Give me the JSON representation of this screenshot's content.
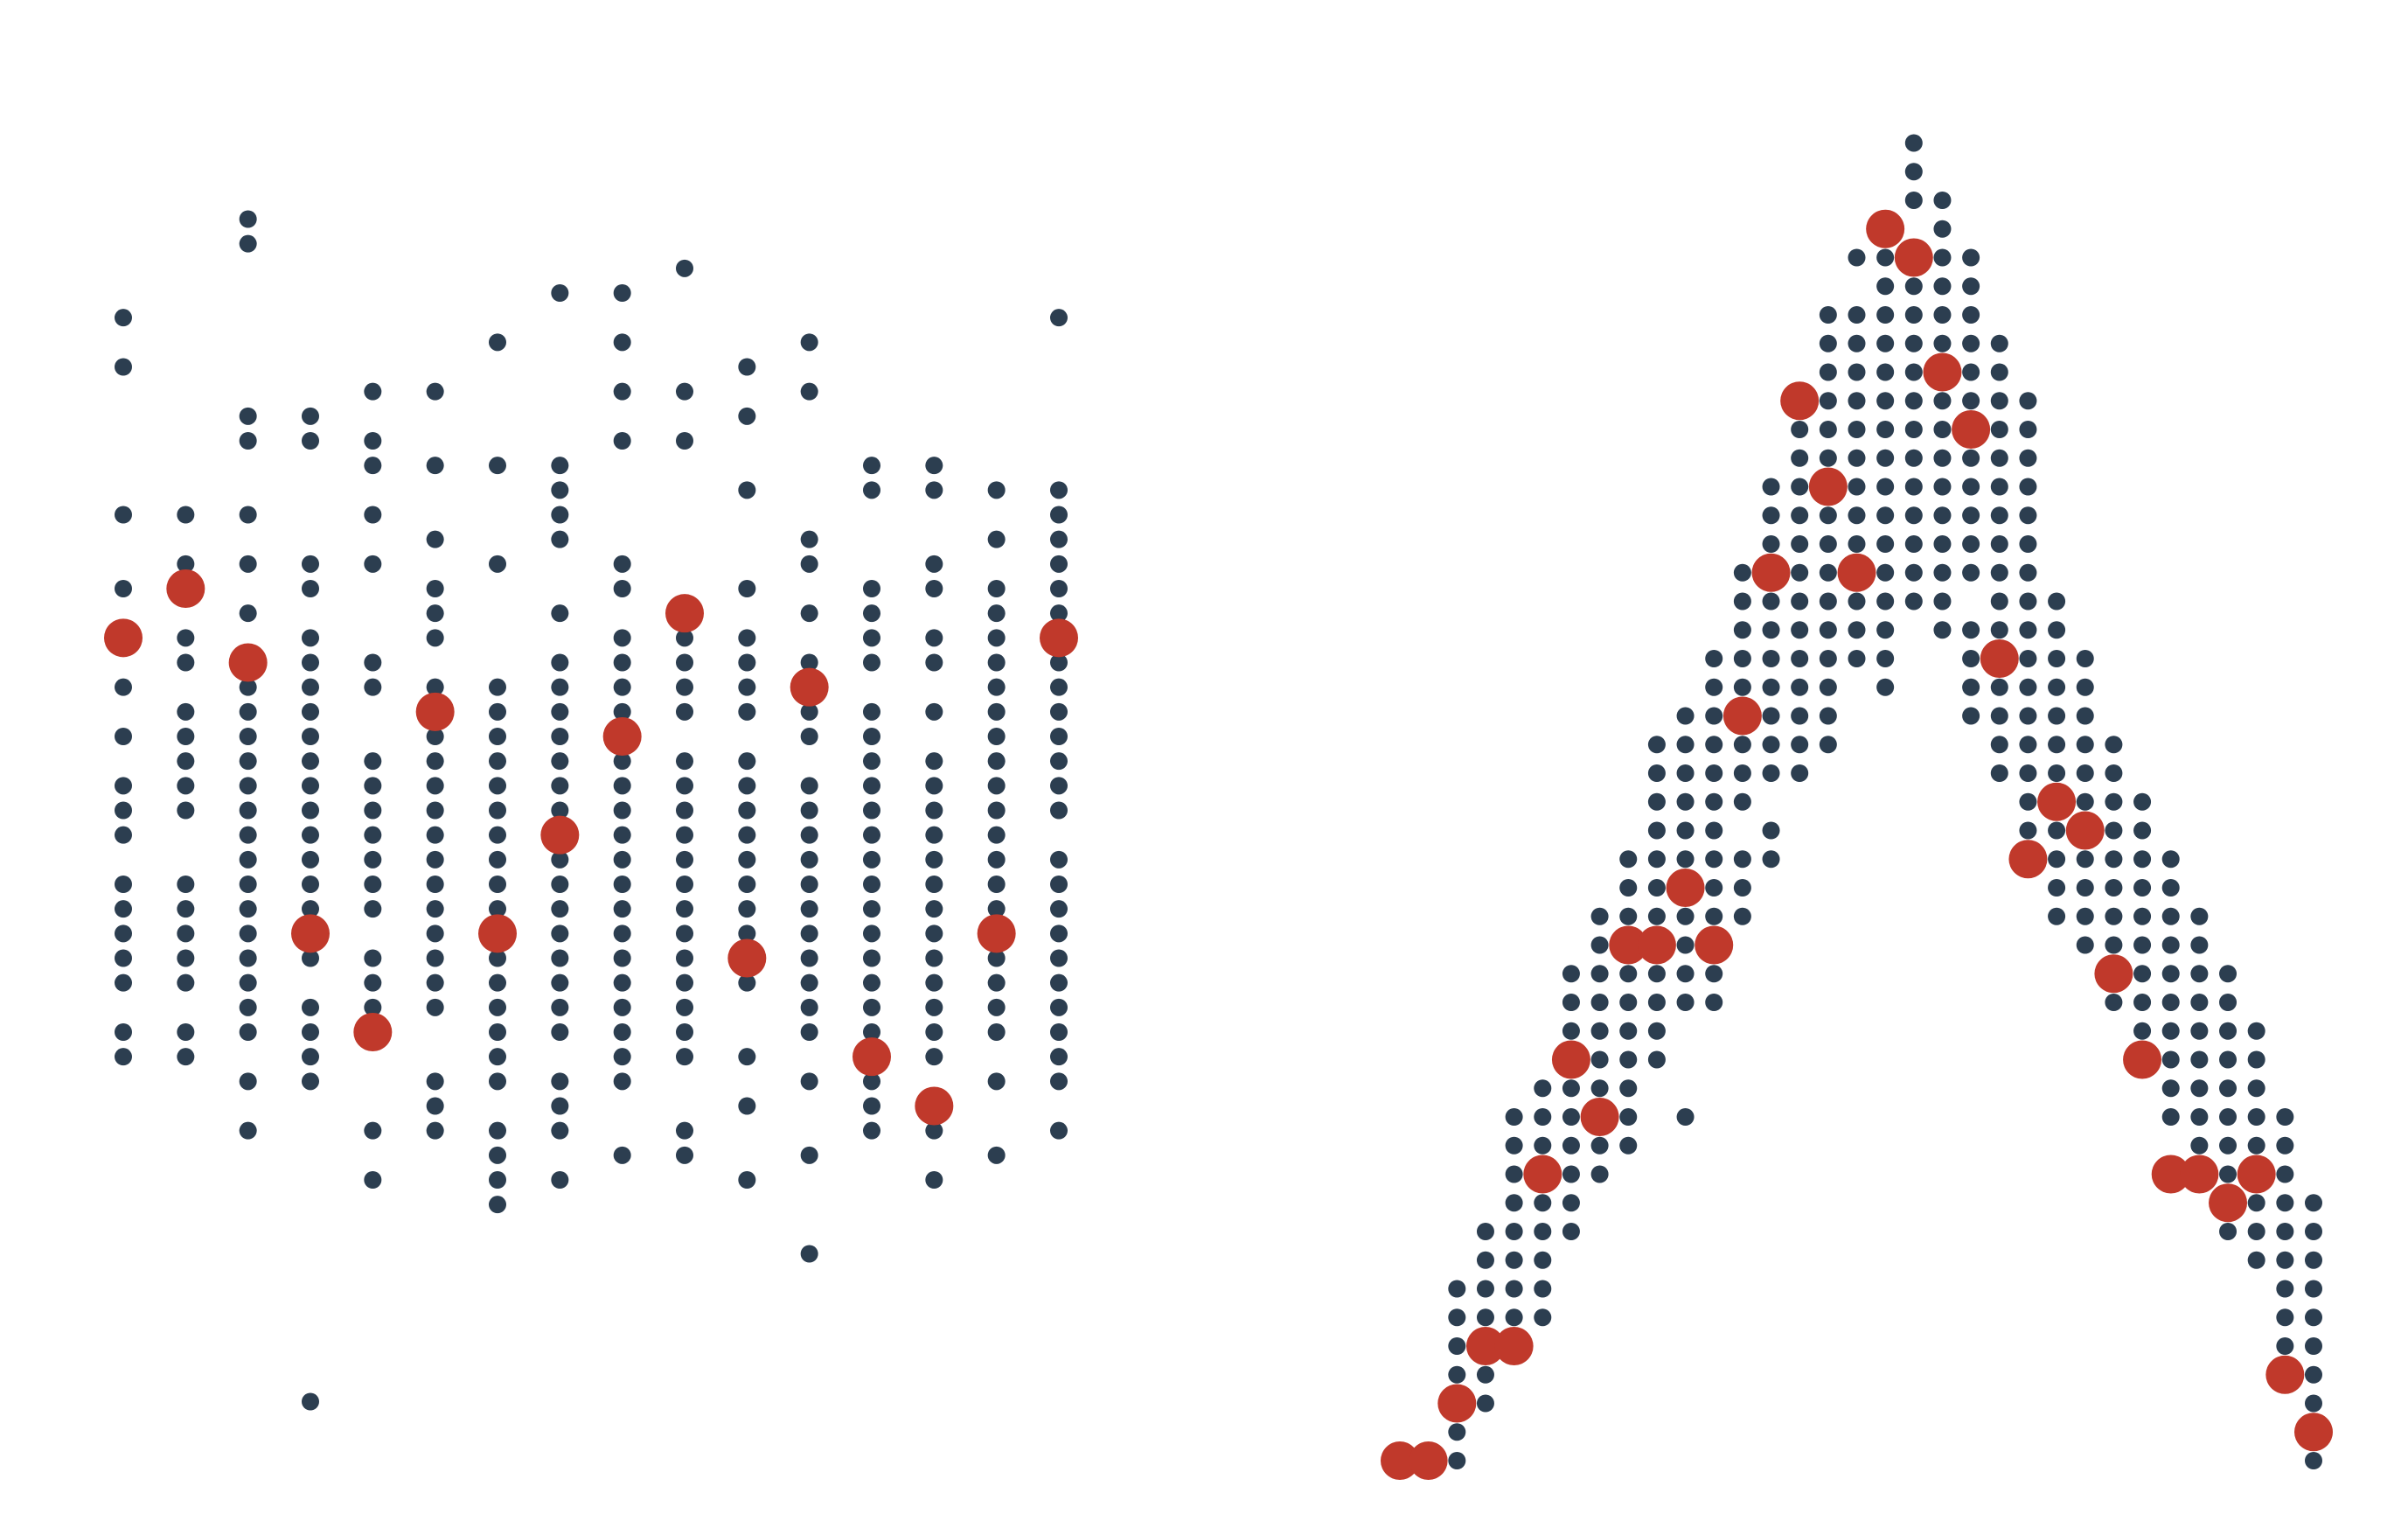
{
  "colors": {
    "background": "#ffffff",
    "background_points": "#2c3e50",
    "highlight_points": "#c0392b"
  },
  "chart_data": [
    {
      "type": "scatter",
      "xlim": [
        0,
        15
      ],
      "ylim": [
        0,
        54
      ],
      "grid": false,
      "axes_visible": false,
      "highlight": [
        {
          "x": 0,
          "y": 34
        },
        {
          "x": 1,
          "y": 36
        },
        {
          "x": 2,
          "y": 33
        },
        {
          "x": 3,
          "y": 22
        },
        {
          "x": 4,
          "y": 18
        },
        {
          "x": 5,
          "y": 31
        },
        {
          "x": 6,
          "y": 22
        },
        {
          "x": 7,
          "y": 26
        },
        {
          "x": 8,
          "y": 30
        },
        {
          "x": 9,
          "y": 35
        },
        {
          "x": 10,
          "y": 21
        },
        {
          "x": 11,
          "y": 32
        },
        {
          "x": 12,
          "y": 17
        },
        {
          "x": 13,
          "y": 15
        },
        {
          "x": 14,
          "y": 22
        },
        {
          "x": 15,
          "y": 34
        }
      ],
      "columns": [
        {
          "x": 0,
          "y": [
            47,
            45,
            39,
            36,
            34,
            32,
            30,
            28,
            27,
            26,
            24,
            23,
            22,
            21,
            20,
            18,
            17
          ]
        },
        {
          "x": 1,
          "y": [
            39,
            37,
            34,
            33,
            31,
            30,
            29,
            28,
            27,
            24,
            23,
            22,
            21,
            20,
            18,
            17
          ]
        },
        {
          "x": 2,
          "y": [
            51,
            50,
            43,
            42,
            39,
            37,
            35,
            33,
            32,
            31,
            30,
            29,
            28,
            27,
            26,
            25,
            24,
            23,
            22,
            21,
            20,
            19,
            18,
            16,
            14
          ]
        },
        {
          "x": 3,
          "y": [
            43,
            42,
            37,
            36,
            34,
            33,
            32,
            31,
            30,
            29,
            28,
            27,
            26,
            25,
            24,
            23,
            21,
            19,
            18,
            17,
            16,
            3
          ]
        },
        {
          "x": 4,
          "y": [
            44,
            42,
            41,
            39,
            37,
            33,
            32,
            29,
            28,
            27,
            26,
            25,
            24,
            23,
            21,
            20,
            19,
            14,
            12
          ]
        },
        {
          "x": 5,
          "y": [
            44,
            41,
            38,
            36,
            35,
            34,
            32,
            30,
            29,
            28,
            27,
            26,
            25,
            24,
            23,
            22,
            21,
            20,
            19,
            16,
            15,
            14
          ]
        },
        {
          "x": 6,
          "y": [
            46,
            41,
            37,
            32,
            31,
            30,
            29,
            28,
            27,
            26,
            25,
            24,
            23,
            21,
            20,
            19,
            18,
            17,
            16,
            14,
            13,
            12,
            11
          ]
        },
        {
          "x": 7,
          "y": [
            48,
            41,
            40,
            39,
            38,
            35,
            33,
            32,
            31,
            30,
            29,
            28,
            27,
            25,
            24,
            23,
            22,
            21,
            20,
            19,
            18,
            16,
            15,
            14,
            12
          ]
        },
        {
          "x": 8,
          "y": [
            48,
            46,
            44,
            42,
            37,
            36,
            34,
            33,
            32,
            31,
            29,
            28,
            27,
            26,
            25,
            24,
            23,
            22,
            21,
            20,
            19,
            18,
            17,
            16,
            13
          ]
        },
        {
          "x": 9,
          "y": [
            49,
            44,
            42,
            34,
            33,
            32,
            31,
            29,
            28,
            27,
            26,
            25,
            24,
            23,
            22,
            21,
            20,
            19,
            18,
            17,
            14,
            13
          ]
        },
        {
          "x": 10,
          "y": [
            45,
            43,
            40,
            36,
            34,
            33,
            32,
            31,
            29,
            28,
            27,
            26,
            25,
            24,
            23,
            22,
            20,
            17,
            15,
            12
          ]
        },
        {
          "x": 11,
          "y": [
            46,
            44,
            38,
            37,
            35,
            33,
            32,
            31,
            30,
            28,
            27,
            26,
            25,
            24,
            23,
            22,
            21,
            20,
            19,
            18,
            16,
            13,
            9
          ]
        },
        {
          "x": 12,
          "y": [
            41,
            40,
            36,
            35,
            34,
            33,
            31,
            30,
            29,
            28,
            27,
            26,
            25,
            24,
            23,
            22,
            21,
            20,
            19,
            18,
            17,
            16,
            15,
            14
          ]
        },
        {
          "x": 13,
          "y": [
            41,
            40,
            37,
            36,
            34,
            33,
            31,
            29,
            28,
            27,
            26,
            25,
            24,
            23,
            22,
            21,
            20,
            19,
            18,
            17,
            14,
            12
          ]
        },
        {
          "x": 14,
          "y": [
            40,
            38,
            36,
            35,
            34,
            33,
            32,
            31,
            30,
            29,
            28,
            27,
            26,
            25,
            24,
            23,
            22,
            21,
            20,
            19,
            18,
            16,
            13
          ]
        },
        {
          "x": 15,
          "y": [
            47,
            40,
            39,
            38,
            37,
            36,
            35,
            33,
            32,
            31,
            30,
            29,
            28,
            27,
            25,
            24,
            23,
            22,
            21,
            20,
            19,
            18,
            17,
            16,
            14
          ]
        }
      ]
    },
    {
      "type": "scatter",
      "xlim": [
        0,
        32
      ],
      "ylim": [
        0,
        48
      ],
      "grid": false,
      "axes_visible": false,
      "highlight": [
        {
          "x": 0,
          "y": 0
        },
        {
          "x": 1,
          "y": 0
        },
        {
          "x": 2,
          "y": 2
        },
        {
          "x": 3,
          "y": 4
        },
        {
          "x": 4,
          "y": 4
        },
        {
          "x": 5,
          "y": 10
        },
        {
          "x": 6,
          "y": 14
        },
        {
          "x": 7,
          "y": 12
        },
        {
          "x": 8,
          "y": 18
        },
        {
          "x": 9,
          "y": 18
        },
        {
          "x": 10,
          "y": 20
        },
        {
          "x": 11,
          "y": 18
        },
        {
          "x": 12,
          "y": 26
        },
        {
          "x": 13,
          "y": 31
        },
        {
          "x": 14,
          "y": 37
        },
        {
          "x": 15,
          "y": 34
        },
        {
          "x": 16,
          "y": 31
        },
        {
          "x": 17,
          "y": 43
        },
        {
          "x": 18,
          "y": 42
        },
        {
          "x": 19,
          "y": 38
        },
        {
          "x": 20,
          "y": 36
        },
        {
          "x": 21,
          "y": 28
        },
        {
          "x": 22,
          "y": 21
        },
        {
          "x": 23,
          "y": 23
        },
        {
          "x": 24,
          "y": 22
        },
        {
          "x": 25,
          "y": 17
        },
        {
          "x": 26,
          "y": 14
        },
        {
          "x": 27,
          "y": 10
        },
        {
          "x": 28,
          "y": 10
        },
        {
          "x": 29,
          "y": 9
        },
        {
          "x": 30,
          "y": 10
        },
        {
          "x": 31,
          "y": 3
        },
        {
          "x": 32,
          "y": 1
        }
      ],
      "columns": [
        {
          "x": 2,
          "y": [
            0,
            1,
            2,
            3,
            4,
            5,
            6
          ]
        },
        {
          "x": 3,
          "y": [
            2,
            3,
            4,
            5,
            6,
            7,
            8
          ]
        },
        {
          "x": 4,
          "y": [
            4,
            5,
            6,
            7,
            8,
            9,
            10,
            11,
            12
          ]
        },
        {
          "x": 5,
          "y": [
            5,
            6,
            7,
            8,
            9,
            10,
            11,
            12,
            13
          ]
        },
        {
          "x": 6,
          "y": [
            8,
            9,
            10,
            11,
            12,
            13,
            14,
            15,
            16,
            17
          ]
        },
        {
          "x": 7,
          "y": [
            10,
            11,
            12,
            13,
            14,
            15,
            16,
            17,
            18,
            19
          ]
        },
        {
          "x": 8,
          "y": [
            11,
            12,
            13,
            14,
            15,
            16,
            17,
            18,
            19,
            20,
            21
          ]
        },
        {
          "x": 9,
          "y": [
            14,
            15,
            16,
            17,
            18,
            19,
            20,
            21,
            22,
            23,
            24,
            25
          ]
        },
        {
          "x": 10,
          "y": [
            12,
            16,
            17,
            18,
            19,
            20,
            21,
            22,
            23,
            24,
            25,
            26
          ]
        },
        {
          "x": 11,
          "y": [
            16,
            17,
            19,
            20,
            21,
            22,
            23,
            24,
            25,
            26,
            27,
            28
          ]
        },
        {
          "x": 12,
          "y": [
            19,
            20,
            21,
            23,
            24,
            25,
            26,
            27,
            28,
            29,
            30,
            31
          ]
        },
        {
          "x": 13,
          "y": [
            21,
            22,
            24,
            25,
            26,
            27,
            28,
            29,
            30,
            31,
            32,
            33,
            34
          ]
        },
        {
          "x": 14,
          "y": [
            24,
            25,
            26,
            27,
            28,
            29,
            30,
            31,
            32,
            33,
            34,
            35,
            36
          ]
        },
        {
          "x": 15,
          "y": [
            25,
            26,
            27,
            28,
            29,
            30,
            31,
            32,
            33,
            34,
            35,
            36,
            37,
            38,
            39,
            40
          ]
        },
        {
          "x": 16,
          "y": [
            28,
            29,
            30,
            31,
            32,
            33,
            34,
            35,
            36,
            37,
            38,
            39,
            40,
            42
          ]
        },
        {
          "x": 17,
          "y": [
            27,
            28,
            29,
            30,
            31,
            32,
            33,
            34,
            35,
            36,
            37,
            38,
            39,
            40,
            41,
            42,
            43
          ]
        },
        {
          "x": 18,
          "y": [
            30,
            31,
            32,
            33,
            34,
            35,
            36,
            37,
            38,
            39,
            40,
            41,
            42,
            44,
            45,
            46
          ]
        },
        {
          "x": 19,
          "y": [
            29,
            30,
            31,
            32,
            33,
            34,
            35,
            36,
            37,
            38,
            39,
            40,
            41,
            42,
            43,
            44
          ]
        },
        {
          "x": 20,
          "y": [
            26,
            27,
            28,
            29,
            31,
            32,
            33,
            34,
            35,
            36,
            37,
            38,
            39,
            40,
            41,
            42
          ]
        },
        {
          "x": 21,
          "y": [
            24,
            25,
            26,
            27,
            28,
            29,
            30,
            31,
            32,
            33,
            34,
            35,
            36,
            37,
            38,
            39
          ]
        },
        {
          "x": 22,
          "y": [
            22,
            23,
            24,
            25,
            26,
            27,
            28,
            29,
            30,
            31,
            32,
            33,
            34,
            35,
            36,
            37
          ]
        },
        {
          "x": 23,
          "y": [
            19,
            20,
            21,
            22,
            23,
            24,
            25,
            26,
            27,
            28,
            29,
            30
          ]
        },
        {
          "x": 24,
          "y": [
            18,
            19,
            20,
            21,
            22,
            23,
            24,
            25,
            26,
            27,
            28
          ]
        },
        {
          "x": 25,
          "y": [
            16,
            17,
            18,
            19,
            20,
            21,
            22,
            23,
            24,
            25
          ]
        },
        {
          "x": 26,
          "y": [
            14,
            15,
            16,
            17,
            18,
            19,
            20,
            21,
            22,
            23
          ]
        },
        {
          "x": 27,
          "y": [
            12,
            13,
            14,
            15,
            16,
            17,
            18,
            19,
            20,
            21
          ]
        },
        {
          "x": 28,
          "y": [
            10,
            11,
            12,
            13,
            14,
            15,
            16,
            17,
            18,
            19
          ]
        },
        {
          "x": 29,
          "y": [
            8,
            9,
            10,
            11,
            12,
            13,
            14,
            15,
            16,
            17
          ]
        },
        {
          "x": 30,
          "y": [
            7,
            8,
            9,
            10,
            11,
            12,
            13,
            14,
            15
          ]
        },
        {
          "x": 31,
          "y": [
            3,
            4,
            5,
            6,
            7,
            8,
            9,
            10,
            11,
            12
          ]
        },
        {
          "x": 32,
          "y": [
            0,
            1,
            2,
            3,
            4,
            5,
            6,
            7,
            8,
            9
          ]
        }
      ]
    }
  ]
}
